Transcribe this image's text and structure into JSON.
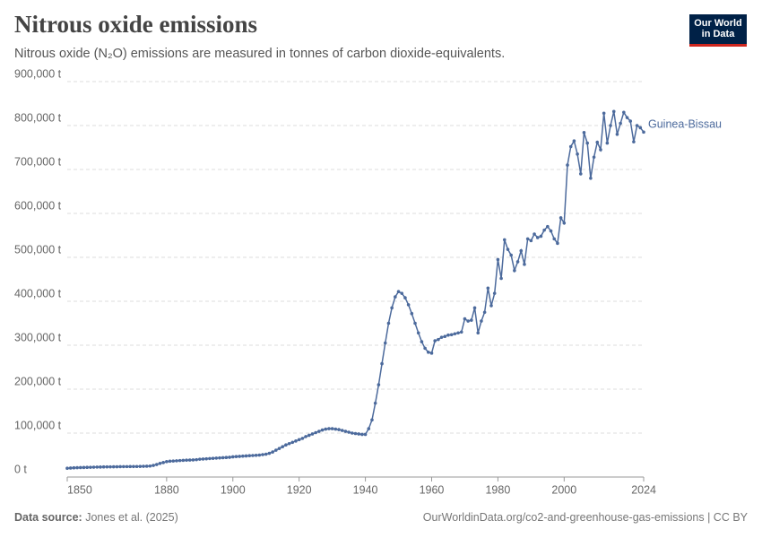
{
  "chart_data": {
    "type": "line",
    "title": "Nitrous oxide emissions",
    "subtitle": "Nitrous oxide (N₂O) emissions are measured in tonnes of carbon dioxide-equivalents.",
    "logo": [
      "Our World",
      "in Data"
    ],
    "source_label": "Data source:",
    "source": "Jones et al. (2025)",
    "footer_right": "OurWorldinData.org/co2-and-greenhouse-gas-emissions | CC BY",
    "x": [
      1850,
      1851,
      1852,
      1853,
      1854,
      1855,
      1856,
      1857,
      1858,
      1859,
      1860,
      1861,
      1862,
      1863,
      1864,
      1865,
      1866,
      1867,
      1868,
      1869,
      1870,
      1871,
      1872,
      1873,
      1874,
      1875,
      1876,
      1877,
      1878,
      1879,
      1880,
      1881,
      1882,
      1883,
      1884,
      1885,
      1886,
      1887,
      1888,
      1889,
      1890,
      1891,
      1892,
      1893,
      1894,
      1895,
      1896,
      1897,
      1898,
      1899,
      1900,
      1901,
      1902,
      1903,
      1904,
      1905,
      1906,
      1907,
      1908,
      1909,
      1910,
      1911,
      1912,
      1913,
      1914,
      1915,
      1916,
      1917,
      1918,
      1919,
      1920,
      1921,
      1922,
      1923,
      1924,
      1925,
      1926,
      1927,
      1928,
      1929,
      1930,
      1931,
      1932,
      1933,
      1934,
      1935,
      1936,
      1937,
      1938,
      1939,
      1940,
      1941,
      1942,
      1943,
      1944,
      1945,
      1946,
      1947,
      1948,
      1949,
      1950,
      1951,
      1952,
      1953,
      1954,
      1955,
      1956,
      1957,
      1958,
      1959,
      1960,
      1961,
      1962,
      1963,
      1964,
      1965,
      1966,
      1967,
      1968,
      1969,
      1970,
      1971,
      1972,
      1973,
      1974,
      1975,
      1976,
      1977,
      1978,
      1979,
      1980,
      1981,
      1982,
      1983,
      1984,
      1985,
      1986,
      1987,
      1988,
      1989,
      1990,
      1991,
      1992,
      1993,
      1994,
      1995,
      1996,
      1997,
      1998,
      1999,
      2000,
      2001,
      2002,
      2003,
      2004,
      2005,
      2006,
      2007,
      2008,
      2009,
      2010,
      2011,
      2012,
      2013,
      2014,
      2015,
      2016,
      2017,
      2018,
      2019,
      2020,
      2021,
      2022,
      2023,
      2024
    ],
    "series": [
      {
        "name": "Guinea-Bissau",
        "color": "#4c6a9c",
        "values": [
          20000,
          20500,
          21000,
          21200,
          21500,
          21800,
          22000,
          22200,
          22400,
          22600,
          22800,
          23000,
          23100,
          23200,
          23300,
          23400,
          23500,
          23600,
          23700,
          23800,
          23900,
          24000,
          24200,
          24400,
          24600,
          25000,
          26500,
          28500,
          31000,
          33000,
          35000,
          36000,
          36500,
          37000,
          37500,
          38000,
          38300,
          38600,
          39000,
          39500,
          40500,
          41000,
          41500,
          42000,
          42500,
          43000,
          43500,
          44000,
          44500,
          45000,
          46000,
          46500,
          47000,
          47500,
          48000,
          48500,
          49000,
          49500,
          50000,
          51000,
          52000,
          54000,
          57000,
          61000,
          65000,
          69000,
          73000,
          76000,
          79000,
          82000,
          85000,
          88000,
          92000,
          95000,
          98000,
          101000,
          104000,
          107000,
          109000,
          110000,
          110000,
          109000,
          108000,
          106000,
          104000,
          102000,
          100000,
          99000,
          98000,
          97000,
          97000,
          110000,
          130000,
          168000,
          210000,
          258000,
          305000,
          350000,
          385000,
          410000,
          422000,
          418000,
          408000,
          392000,
          372000,
          350000,
          328000,
          308000,
          293000,
          284000,
          282000,
          310000,
          313000,
          318000,
          320000,
          323000,
          324000,
          326000,
          328000,
          330000,
          360000,
          355000,
          357000,
          385000,
          328000,
          355000,
          375000,
          430000,
          390000,
          418000,
          495000,
          452000,
          540000,
          518000,
          505000,
          470000,
          490000,
          515000,
          484000,
          542000,
          538000,
          553000,
          545000,
          548000,
          562000,
          570000,
          560000,
          542000,
          532000,
          590000,
          578000,
          710000,
          752000,
          765000,
          735000,
          690000,
          784000,
          760000,
          680000,
          728000,
          762000,
          745000,
          828000,
          760000,
          800000,
          832000,
          780000,
          805000,
          830000,
          818000,
          810000,
          763000,
          800000,
          795000,
          785000
        ]
      }
    ],
    "xlim": [
      1850,
      2024
    ],
    "xticks": [
      1850,
      1880,
      1900,
      1920,
      1940,
      1960,
      1980,
      2000,
      2024
    ],
    "ylim": [
      0,
      900000
    ],
    "yticks": [
      {
        "value": 0,
        "label": "0 t"
      },
      {
        "value": 100000,
        "label": "100,000 t"
      },
      {
        "value": 200000,
        "label": "200,000 t"
      },
      {
        "value": 300000,
        "label": "300,000 t"
      },
      {
        "value": 400000,
        "label": "400,000 t"
      },
      {
        "value": 500000,
        "label": "500,000 t"
      },
      {
        "value": 600000,
        "label": "600,000 t"
      },
      {
        "value": 700000,
        "label": "700,000 t"
      },
      {
        "value": 800000,
        "label": "800,000 t"
      },
      {
        "value": 900000,
        "label": "900,000 t"
      }
    ],
    "grid": true
  }
}
